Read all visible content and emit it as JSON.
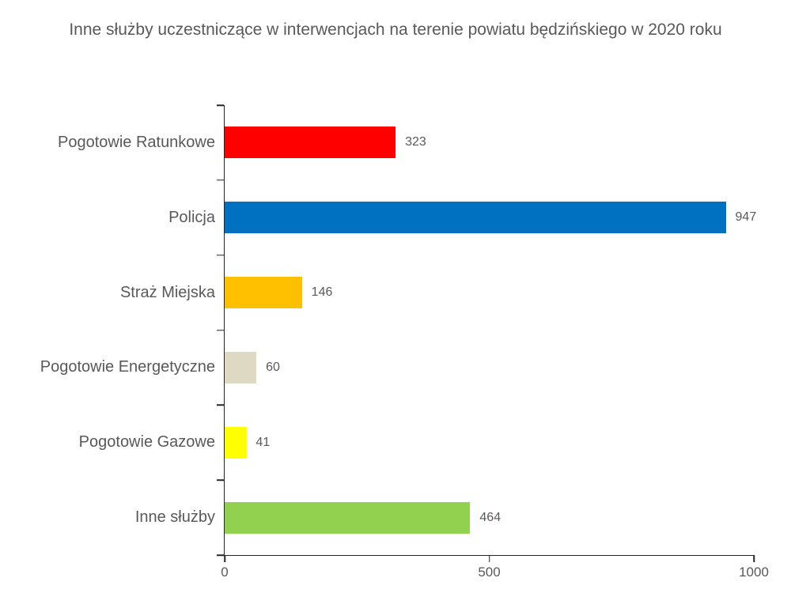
{
  "title": "Inne służby uczestniczące w interwencjach na terenie powiatu będzińskiego w 2020 roku",
  "chart_data": {
    "type": "bar",
    "orientation": "horizontal",
    "title": "Inne służby uczestniczące w interwencjach na terenie powiatu będzińskiego w 2020 roku",
    "categories": [
      "Pogotowie Ratunkowe",
      "Policja",
      "Straż Miejska",
      "Pogotowie Energetyczne",
      "Pogotowie Gazowe",
      "Inne służby"
    ],
    "values": [
      323,
      947,
      146,
      60,
      41,
      464
    ],
    "colors": [
      "#ff0000",
      "#0070c0",
      "#ffc000",
      "#ddd9c3",
      "#ffff00",
      "#92d050"
    ],
    "xlabel": "",
    "ylabel": "",
    "xlim": [
      0,
      1000
    ],
    "x_ticks": [
      "0",
      "500",
      "1000"
    ],
    "grid": false,
    "legend": "none",
    "value_label_position": "outside-end",
    "text_color": "#595959",
    "axis_color": "#262626",
    "background": "#ffffff"
  }
}
